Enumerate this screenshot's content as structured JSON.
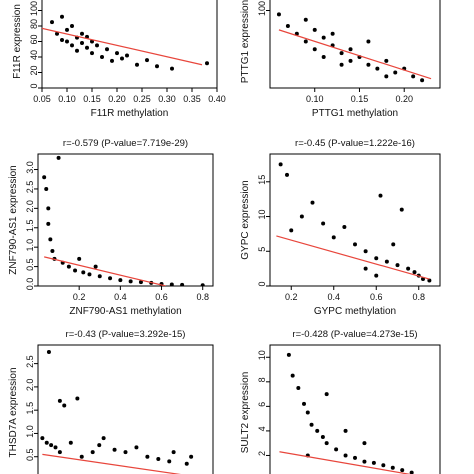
{
  "chart_data": [
    {
      "type": "scatter",
      "title": "",
      "xlabel": "F11R methylation",
      "ylabel": "F11R expression",
      "xlim": [
        0.05,
        0.4
      ],
      "ylim": [
        0,
        120
      ],
      "xticks": [
        "0.05",
        "0.10",
        "0.15",
        "0.20",
        "0.25",
        "0.30",
        "0.35",
        "0.40"
      ],
      "yticks": [
        "0",
        "20",
        "40",
        "60",
        "80",
        "100",
        "120"
      ],
      "regression": {
        "x": [
          0.05,
          0.37
        ],
        "y": [
          77,
          30
        ]
      },
      "points": [
        [
          0.07,
          85
        ],
        [
          0.08,
          70
        ],
        [
          0.09,
          62
        ],
        [
          0.09,
          92
        ],
        [
          0.1,
          60
        ],
        [
          0.1,
          75
        ],
        [
          0.11,
          55
        ],
        [
          0.11,
          80
        ],
        [
          0.12,
          65
        ],
        [
          0.12,
          48
        ],
        [
          0.13,
          70
        ],
        [
          0.13,
          58
        ],
        [
          0.14,
          52
        ],
        [
          0.14,
          66
        ],
        [
          0.15,
          45
        ],
        [
          0.15,
          60
        ],
        [
          0.16,
          55
        ],
        [
          0.17,
          40
        ],
        [
          0.18,
          50
        ],
        [
          0.19,
          35
        ],
        [
          0.2,
          45
        ],
        [
          0.21,
          38
        ],
        [
          0.22,
          42
        ],
        [
          0.24,
          30
        ],
        [
          0.26,
          36
        ],
        [
          0.28,
          28
        ],
        [
          0.31,
          25
        ],
        [
          0.38,
          32
        ]
      ]
    },
    {
      "type": "scatter",
      "title": "",
      "xlabel": "PTTG1 methylation",
      "ylabel": "PTTG1 expression",
      "xlim": [
        0.05,
        0.24
      ],
      "ylim": [
        0,
        120
      ],
      "xticks": [
        "0.10",
        "0.15",
        "0.20"
      ],
      "xtick_values": [
        0.1,
        0.15,
        0.2
      ],
      "yticks": [
        "100"
      ],
      "ytick_values": [
        100
      ],
      "regression": {
        "x": [
          0.06,
          0.23
        ],
        "y": [
          75,
          12
        ]
      },
      "points": [
        [
          0.06,
          95
        ],
        [
          0.07,
          80
        ],
        [
          0.08,
          70
        ],
        [
          0.09,
          88
        ],
        [
          0.09,
          60
        ],
        [
          0.1,
          75
        ],
        [
          0.1,
          50
        ],
        [
          0.11,
          65
        ],
        [
          0.11,
          40
        ],
        [
          0.12,
          55
        ],
        [
          0.12,
          70
        ],
        [
          0.13,
          45
        ],
        [
          0.13,
          30
        ],
        [
          0.14,
          50
        ],
        [
          0.14,
          35
        ],
        [
          0.15,
          40
        ],
        [
          0.16,
          30
        ],
        [
          0.17,
          25
        ],
        [
          0.18,
          35
        ],
        [
          0.19,
          20
        ],
        [
          0.2,
          25
        ],
        [
          0.21,
          15
        ],
        [
          0.22,
          10
        ],
        [
          0.16,
          60
        ],
        [
          0.18,
          15
        ]
      ]
    },
    {
      "type": "scatter",
      "title": "r=-0.579 (P-value=7.719e-29)",
      "xlabel": "ZNF790-AS1 methylation",
      "ylabel": "ZNF790-AS1 expression",
      "xlim": [
        0,
        0.85
      ],
      "ylim": [
        0,
        3.4
      ],
      "xticks": [
        "0.2",
        "0.4",
        "0.6",
        "0.8"
      ],
      "xtick_values": [
        0.2,
        0.4,
        0.6,
        0.8
      ],
      "yticks": [
        "0.0",
        "0.5",
        "1.0",
        "1.5",
        "2.0",
        "2.5",
        "3.0"
      ],
      "ytick_values": [
        0,
        0.5,
        1.0,
        1.5,
        2.0,
        2.5,
        3.0
      ],
      "regression": {
        "x": [
          0.03,
          0.62
        ],
        "y": [
          0.75,
          0.0
        ]
      },
      "points": [
        [
          0.03,
          2.8
        ],
        [
          0.04,
          2.5
        ],
        [
          0.05,
          2.0
        ],
        [
          0.05,
          1.6
        ],
        [
          0.06,
          1.2
        ],
        [
          0.07,
          0.9
        ],
        [
          0.08,
          0.7
        ],
        [
          0.1,
          3.3
        ],
        [
          0.12,
          0.6
        ],
        [
          0.15,
          0.5
        ],
        [
          0.18,
          0.4
        ],
        [
          0.22,
          0.35
        ],
        [
          0.25,
          0.3
        ],
        [
          0.3,
          0.25
        ],
        [
          0.35,
          0.2
        ],
        [
          0.4,
          0.15
        ],
        [
          0.45,
          0.12
        ],
        [
          0.5,
          0.1
        ],
        [
          0.55,
          0.08
        ],
        [
          0.6,
          0.05
        ],
        [
          0.65,
          0.04
        ],
        [
          0.7,
          0.03
        ],
        [
          0.8,
          0.02
        ],
        [
          0.2,
          0.7
        ],
        [
          0.28,
          0.5
        ]
      ]
    },
    {
      "type": "scatter",
      "title": "r=-0.45 (P-value=1.222e-16)",
      "xlabel": "GYPC methylation",
      "ylabel": "GYPC expression",
      "xlim": [
        0.1,
        0.9
      ],
      "ylim": [
        0,
        19
      ],
      "xticks": [
        "0.2",
        "0.4",
        "0.6",
        "0.8"
      ],
      "xtick_values": [
        0.2,
        0.4,
        0.6,
        0.8
      ],
      "yticks": [
        "0",
        "5",
        "10",
        "15"
      ],
      "ytick_values": [
        0,
        5,
        10,
        15
      ],
      "regression": {
        "x": [
          0.13,
          0.85
        ],
        "y": [
          7.2,
          1.0
        ]
      },
      "points": [
        [
          0.15,
          17.5
        ],
        [
          0.18,
          16
        ],
        [
          0.2,
          8
        ],
        [
          0.25,
          10
        ],
        [
          0.3,
          12
        ],
        [
          0.35,
          9
        ],
        [
          0.4,
          7
        ],
        [
          0.45,
          8.5
        ],
        [
          0.5,
          6
        ],
        [
          0.55,
          5
        ],
        [
          0.6,
          4
        ],
        [
          0.62,
          13
        ],
        [
          0.65,
          3.5
        ],
        [
          0.7,
          3
        ],
        [
          0.72,
          11
        ],
        [
          0.75,
          2.5
        ],
        [
          0.78,
          2
        ],
        [
          0.8,
          1.5
        ],
        [
          0.82,
          1
        ],
        [
          0.85,
          0.8
        ],
        [
          0.55,
          2.5
        ],
        [
          0.6,
          1.5
        ],
        [
          0.68,
          6
        ]
      ]
    },
    {
      "type": "scatter",
      "title": "r=-0.43 (P-value=3.292e-15)",
      "xlabel": "",
      "ylabel": "THSD7A expression",
      "xlim": [
        0,
        0.8
      ],
      "ylim": [
        0,
        2.9
      ],
      "xticks": [],
      "yticks": [
        "0.5",
        "1.0",
        "1.5",
        "2.0",
        "2.5"
      ],
      "ytick_values": [
        0.5,
        1.0,
        1.5,
        2.0,
        2.5
      ],
      "regression": {
        "x": [
          0.02,
          0.75
        ],
        "y": [
          0.55,
          0.05
        ]
      },
      "points": [
        [
          0.05,
          2.75
        ],
        [
          0.1,
          1.7
        ],
        [
          0.12,
          1.6
        ],
        [
          0.18,
          1.75
        ],
        [
          0.02,
          0.9
        ],
        [
          0.04,
          0.8
        ],
        [
          0.06,
          0.75
        ],
        [
          0.08,
          0.7
        ],
        [
          0.1,
          0.6
        ],
        [
          0.15,
          0.8
        ],
        [
          0.2,
          0.5
        ],
        [
          0.25,
          0.6
        ],
        [
          0.28,
          0.75
        ],
        [
          0.3,
          0.9
        ],
        [
          0.35,
          0.65
        ],
        [
          0.4,
          0.6
        ],
        [
          0.45,
          0.7
        ],
        [
          0.5,
          0.5
        ],
        [
          0.55,
          0.45
        ],
        [
          0.6,
          0.4
        ],
        [
          0.62,
          0.6
        ],
        [
          0.68,
          0.35
        ],
        [
          0.7,
          0.5
        ]
      ]
    },
    {
      "type": "scatter",
      "title": "r=-0.428 (P-value=4.273e-15)",
      "xlabel": "",
      "ylabel": "SULT2 expression",
      "xlim": [
        0,
        0.9
      ],
      "ylim": [
        0,
        11
      ],
      "xticks": [],
      "yticks": [
        "2",
        "4",
        "6",
        "8",
        "10"
      ],
      "ytick_values": [
        2,
        4,
        6,
        8,
        10
      ],
      "regression": {
        "x": [
          0.05,
          0.8
        ],
        "y": [
          2.3,
          0.3
        ]
      },
      "points": [
        [
          0.1,
          10.2
        ],
        [
          0.12,
          8.5
        ],
        [
          0.15,
          7.5
        ],
        [
          0.18,
          6.2
        ],
        [
          0.2,
          5.5
        ],
        [
          0.22,
          4.5
        ],
        [
          0.25,
          4
        ],
        [
          0.28,
          3.5
        ],
        [
          0.3,
          3
        ],
        [
          0.35,
          2.5
        ],
        [
          0.4,
          2
        ],
        [
          0.45,
          1.8
        ],
        [
          0.5,
          1.5
        ],
        [
          0.55,
          1.4
        ],
        [
          0.6,
          1.2
        ],
        [
          0.65,
          1
        ],
        [
          0.7,
          0.8
        ],
        [
          0.75,
          0.6
        ],
        [
          0.3,
          7
        ],
        [
          0.4,
          4
        ],
        [
          0.5,
          3
        ],
        [
          0.2,
          2
        ]
      ]
    }
  ]
}
